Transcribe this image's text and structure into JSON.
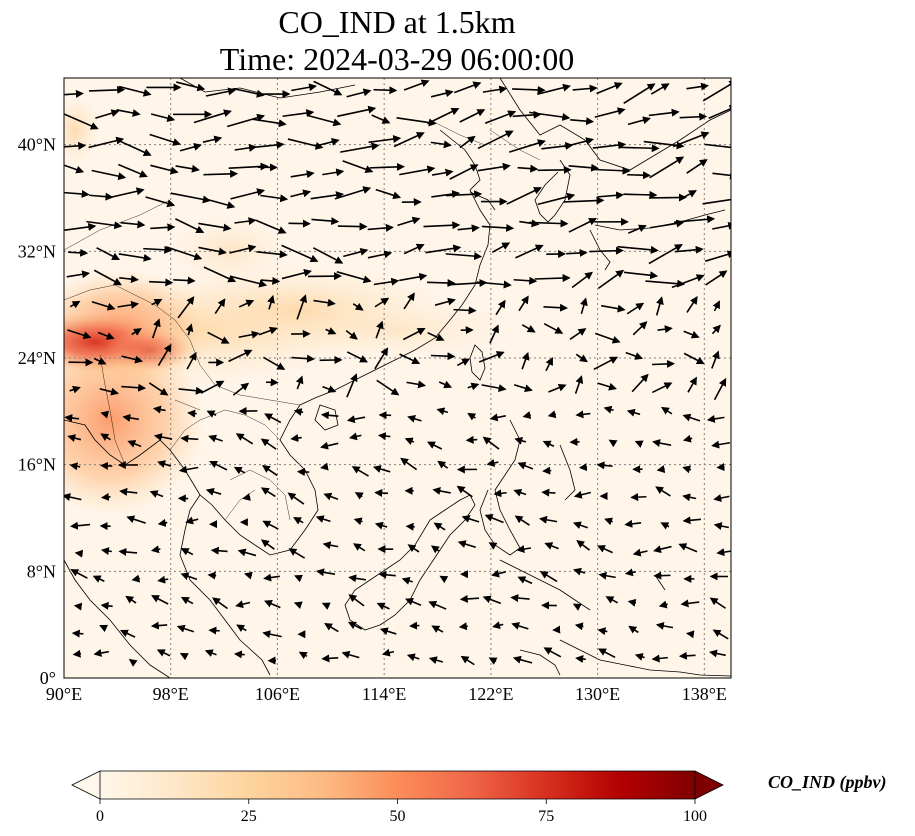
{
  "map": {
    "title_line1": "CO_IND at 1.5km",
    "title_line2": "Time: 2024-03-29 06:00:00",
    "extent": {
      "lon": [
        90,
        140
      ],
      "lat": [
        0,
        45
      ]
    },
    "x_ticks": [
      {
        "lon": 90,
        "label": "90°E"
      },
      {
        "lon": 98,
        "label": "98°E"
      },
      {
        "lon": 106,
        "label": "106°E"
      },
      {
        "lon": 114,
        "label": "114°E"
      },
      {
        "lon": 122,
        "label": "122°E"
      },
      {
        "lon": 130,
        "label": "130°E"
      },
      {
        "lon": 138,
        "label": "138°E"
      }
    ],
    "y_ticks": [
      {
        "lat": 0,
        "label": "0°"
      },
      {
        "lat": 8,
        "label": "8°N"
      },
      {
        "lat": 16,
        "label": "16°N"
      },
      {
        "lat": 24,
        "label": "24°N"
      },
      {
        "lat": 32,
        "label": "32°N"
      },
      {
        "lat": 40,
        "label": "40°N"
      }
    ],
    "gridlines": true,
    "colormap": "OrRd",
    "colors": {
      "low": "#fff7ec",
      "mid": "#fdbb84",
      "high": "#d7301f",
      "max": "#7f0000",
      "coast": "#000000",
      "grid": "#808080",
      "arrow": "#000000"
    }
  },
  "colorbar": {
    "label": "CO_IND (ppbv)",
    "range": [
      0,
      100
    ],
    "extend": "both",
    "ticks": [
      {
        "value": 0,
        "label": "0"
      },
      {
        "value": 25,
        "label": "25"
      },
      {
        "value": 50,
        "label": "50"
      },
      {
        "value": 75,
        "label": "75"
      },
      {
        "value": 100,
        "label": "100"
      }
    ]
  }
}
